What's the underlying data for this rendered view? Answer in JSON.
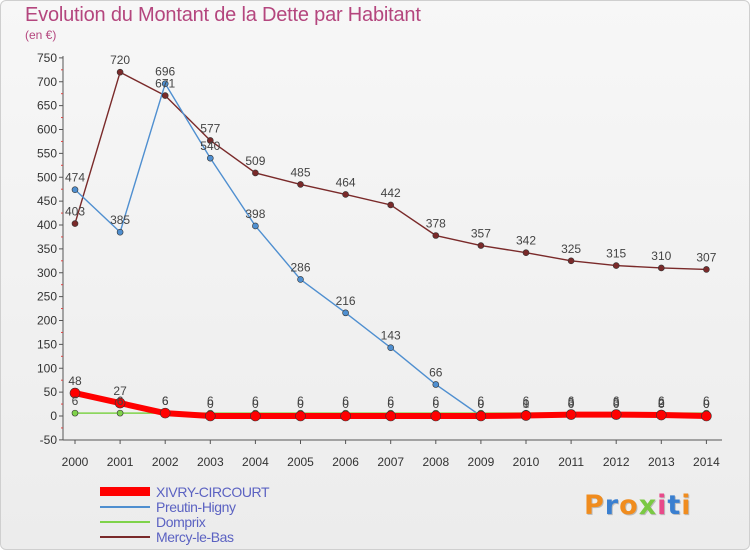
{
  "header": {
    "title": "Evolution du Montant de la Dette par Habitant",
    "subtitle": "(en €)"
  },
  "chart_data": {
    "type": "line",
    "title": "Evolution du Montant de la Dette par Habitant",
    "subtitle": "(en €)",
    "ylim": [
      -50,
      750
    ],
    "y_ticks": [
      -50,
      0,
      50,
      100,
      150,
      200,
      250,
      300,
      350,
      400,
      450,
      500,
      550,
      600,
      650,
      700,
      750
    ],
    "grid": false,
    "legend_position": "bottom-left",
    "x": [
      "2000",
      "2001",
      "2002",
      "2003",
      "2004",
      "2005",
      "2006",
      "2007",
      "2008",
      "2009",
      "2010",
      "2011",
      "2012",
      "2013",
      "2014"
    ],
    "series": [
      {
        "name": "XIVRY-CIRCOURT",
        "color": "#ff0000",
        "values": [
          48,
          27,
          6,
          0,
          0,
          0,
          0,
          0,
          0,
          0,
          1,
          3,
          3,
          2,
          0
        ],
        "labels": [
          "48",
          "27",
          "6",
          "0",
          "0",
          "0",
          "0",
          "0",
          "0",
          "0",
          "1",
          "3",
          "3",
          "2",
          "0"
        ]
      },
      {
        "name": "Preutin-Higny",
        "color": "#4f8fd0",
        "values": [
          474,
          385,
          696,
          540,
          398,
          286,
          216,
          143,
          66,
          0,
          0,
          0,
          0,
          0,
          0
        ],
        "labels": [
          "474",
          "385",
          "696",
          "540",
          "398",
          "286",
          "216",
          "143",
          "66",
          "0",
          "0",
          "0",
          "0",
          "0",
          "0"
        ]
      },
      {
        "name": "Domprix",
        "color": "#7fd34a",
        "values": [
          6,
          6,
          6,
          6,
          6,
          6,
          6,
          6,
          6,
          6,
          6,
          6,
          6,
          6,
          6
        ],
        "labels": [
          "6",
          "6",
          "6",
          "6",
          "6",
          "6",
          "6",
          "6",
          "6",
          "6",
          "6",
          "6",
          "6",
          "6",
          "6"
        ]
      },
      {
        "name": "Mercy-le-Bas",
        "color": "#7a2a2a",
        "values": [
          403,
          720,
          671,
          577,
          509,
          485,
          464,
          442,
          378,
          357,
          342,
          325,
          315,
          310,
          307
        ],
        "labels": [
          "403",
          "720",
          "671",
          "577",
          "509",
          "485",
          "464",
          "442",
          "378",
          "357",
          "342",
          "325",
          "315",
          "310",
          "307"
        ]
      }
    ]
  },
  "legend": {
    "items": [
      {
        "label": "XIVRY-CIRCOURT",
        "color": "#ff0000"
      },
      {
        "label": "Preutin-Higny",
        "color": "#4f8fd0"
      },
      {
        "label": "Domprix",
        "color": "#7fd34a"
      },
      {
        "label": "Mercy-le-Bas",
        "color": "#7a2a2a"
      }
    ]
  },
  "logo": {
    "letters": [
      "P",
      "r",
      "o",
      "x",
      "i",
      "t",
      "i"
    ],
    "colors": [
      "#f08c1e",
      "#3a7fd0",
      "#f08c1e",
      "#7ac943",
      "#e84a8a",
      "#3a7fd0",
      "#f08c1e"
    ]
  }
}
